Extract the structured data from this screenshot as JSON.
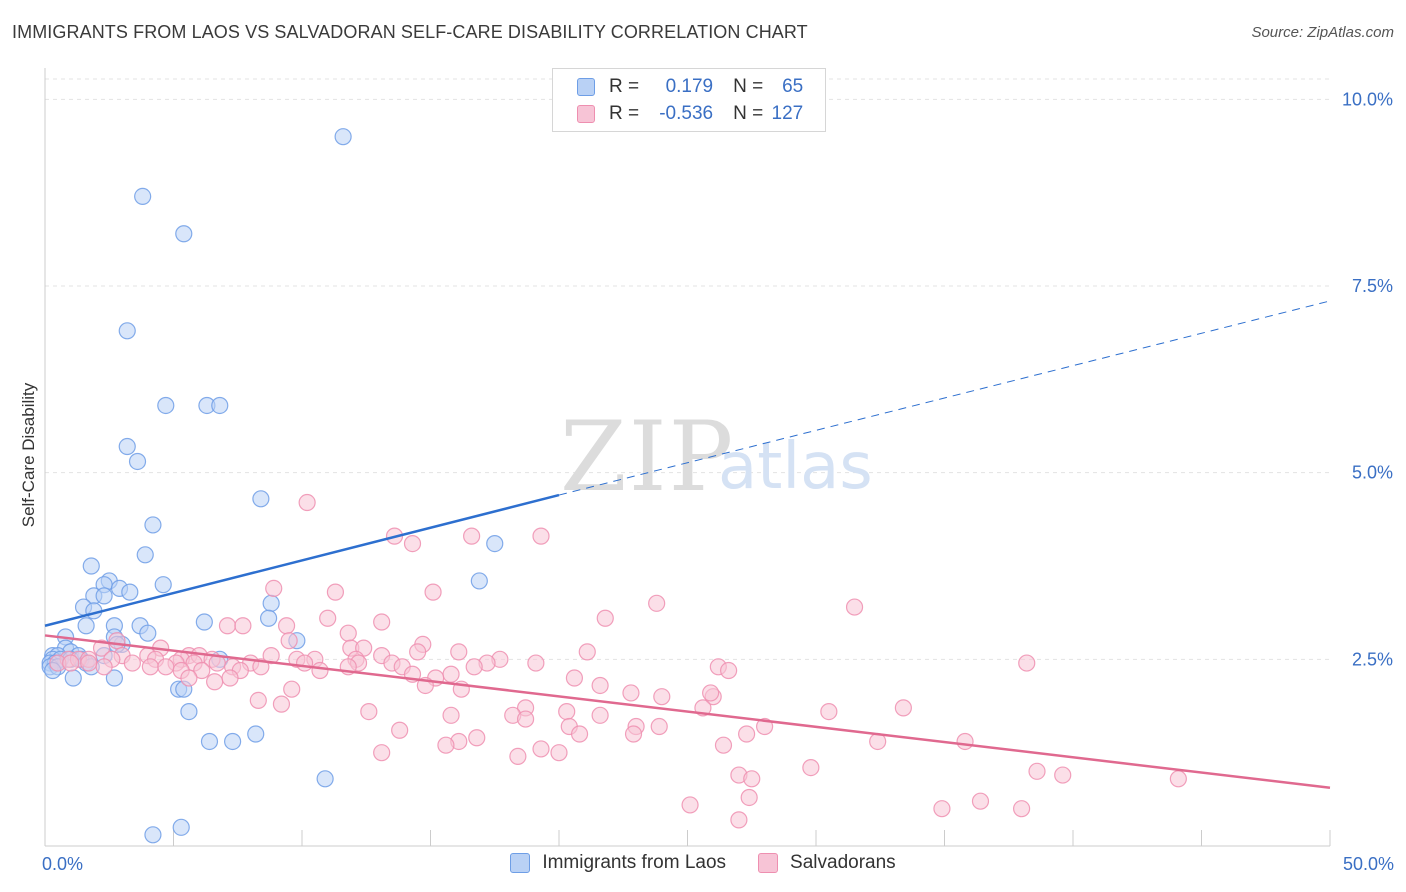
{
  "header": {
    "title": "IMMIGRANTS FROM LAOS VS SALVADORAN SELF-CARE DISABILITY CORRELATION CHART",
    "source": "Source: ZipAtlas.com"
  },
  "legend": {
    "rows": [
      {
        "r_label": "R =",
        "r_value": "0.179",
        "n_label": "N =",
        "n_value": "65"
      },
      {
        "r_label": "R =",
        "r_value": "-0.536",
        "n_label": "N =",
        "n_value": "127"
      }
    ]
  },
  "watermark": {
    "zip": "ZIP",
    "atlas": "atlas"
  },
  "chart_data": {
    "type": "scatter",
    "ylabel": "Self-Care Disability",
    "xlim": [
      0,
      50
    ],
    "ylim": [
      0,
      10.5
    ],
    "x_tick_labels": [
      {
        "v": 0,
        "label": "0.0%"
      },
      {
        "v": 50,
        "label": "50.0%"
      }
    ],
    "x_minor_ticks": [
      0,
      5,
      10,
      15,
      20,
      25,
      30,
      35,
      40,
      45,
      50
    ],
    "y_ticks": [
      {
        "v": 2.5,
        "label": "2.5%"
      },
      {
        "v": 5.0,
        "label": "5.0%"
      },
      {
        "v": 7.5,
        "label": "7.5%"
      },
      {
        "v": 10.0,
        "label": "10.0%"
      }
    ],
    "grid": true,
    "colors": {
      "laos": "#6e9ee6",
      "laos_fill": "#b9d1f5",
      "laos_line": "#2d6fcf",
      "salv": "#ee8fb0",
      "salv_fill": "#f7c4d6",
      "salv_line": "#e0698f"
    },
    "series": [
      {
        "name": "Immigrants from Laos",
        "color": "#6e9ee6",
        "points": [
          [
            11.6,
            9.5
          ],
          [
            3.8,
            8.7
          ],
          [
            5.4,
            8.2
          ],
          [
            3.2,
            6.9
          ],
          [
            4.7,
            5.9
          ],
          [
            6.3,
            5.9
          ],
          [
            6.8,
            5.9
          ],
          [
            3.2,
            5.35
          ],
          [
            3.6,
            5.15
          ],
          [
            8.4,
            4.65
          ],
          [
            4.2,
            4.3
          ],
          [
            17.5,
            4.05
          ],
          [
            3.9,
            3.9
          ],
          [
            1.8,
            3.75
          ],
          [
            2.5,
            3.55
          ],
          [
            2.3,
            3.5
          ],
          [
            4.6,
            3.5
          ],
          [
            2.9,
            3.45
          ],
          [
            3.3,
            3.4
          ],
          [
            1.9,
            3.35
          ],
          [
            2.3,
            3.35
          ],
          [
            1.5,
            3.2
          ],
          [
            1.9,
            3.15
          ],
          [
            8.8,
            3.25
          ],
          [
            8.7,
            3.05
          ],
          [
            6.2,
            3.0
          ],
          [
            1.6,
            2.95
          ],
          [
            2.7,
            2.95
          ],
          [
            3.7,
            2.95
          ],
          [
            4.0,
            2.85
          ],
          [
            0.8,
            2.8
          ],
          [
            2.7,
            2.8
          ],
          [
            9.8,
            2.75
          ],
          [
            3.0,
            2.7
          ],
          [
            0.8,
            2.65
          ],
          [
            1.0,
            2.6
          ],
          [
            0.3,
            2.55
          ],
          [
            0.5,
            2.55
          ],
          [
            1.3,
            2.55
          ],
          [
            2.3,
            2.55
          ],
          [
            0.3,
            2.5
          ],
          [
            0.6,
            2.5
          ],
          [
            1.0,
            2.5
          ],
          [
            1.4,
            2.5
          ],
          [
            0.2,
            2.45
          ],
          [
            0.4,
            2.45
          ],
          [
            1.6,
            2.45
          ],
          [
            0.2,
            2.4
          ],
          [
            0.5,
            2.4
          ],
          [
            1.8,
            2.4
          ],
          [
            0.3,
            2.35
          ],
          [
            1.1,
            2.25
          ],
          [
            2.7,
            2.25
          ],
          [
            5.2,
            2.1
          ],
          [
            5.4,
            2.1
          ],
          [
            16.9,
            3.55
          ],
          [
            6.8,
            2.5
          ],
          [
            5.6,
            1.8
          ],
          [
            8.2,
            1.5
          ],
          [
            6.4,
            1.4
          ],
          [
            7.3,
            1.4
          ],
          [
            10.9,
            0.9
          ],
          [
            4.2,
            0.15
          ],
          [
            5.3,
            0.25
          ],
          [
            2.8,
            2.7
          ]
        ]
      },
      {
        "name": "Salvadorans",
        "color": "#ee8fb0",
        "points": [
          [
            10.2,
            4.6
          ],
          [
            13.6,
            4.15
          ],
          [
            16.6,
            4.15
          ],
          [
            19.3,
            4.15
          ],
          [
            14.3,
            4.05
          ],
          [
            8.9,
            3.45
          ],
          [
            11.3,
            3.4
          ],
          [
            15.1,
            3.4
          ],
          [
            23.8,
            3.25
          ],
          [
            31.5,
            3.2
          ],
          [
            11.0,
            3.05
          ],
          [
            13.1,
            3.0
          ],
          [
            21.8,
            3.05
          ],
          [
            7.1,
            2.95
          ],
          [
            7.7,
            2.95
          ],
          [
            9.4,
            2.95
          ],
          [
            11.8,
            2.85
          ],
          [
            2.8,
            2.75
          ],
          [
            9.5,
            2.75
          ],
          [
            14.7,
            2.7
          ],
          [
            2.2,
            2.65
          ],
          [
            4.5,
            2.65
          ],
          [
            11.9,
            2.65
          ],
          [
            12.4,
            2.65
          ],
          [
            14.5,
            2.6
          ],
          [
            16.1,
            2.6
          ],
          [
            21.1,
            2.6
          ],
          [
            3.0,
            2.55
          ],
          [
            4.0,
            2.55
          ],
          [
            5.6,
            2.55
          ],
          [
            6.0,
            2.55
          ],
          [
            8.8,
            2.55
          ],
          [
            13.1,
            2.55
          ],
          [
            0.9,
            2.5
          ],
          [
            1.3,
            2.5
          ],
          [
            1.7,
            2.5
          ],
          [
            2.6,
            2.5
          ],
          [
            4.3,
            2.5
          ],
          [
            5.3,
            2.5
          ],
          [
            6.5,
            2.5
          ],
          [
            9.8,
            2.5
          ],
          [
            10.5,
            2.5
          ],
          [
            12.1,
            2.5
          ],
          [
            17.7,
            2.5
          ],
          [
            0.5,
            2.45
          ],
          [
            1.0,
            2.45
          ],
          [
            1.7,
            2.45
          ],
          [
            3.4,
            2.45
          ],
          [
            5.1,
            2.45
          ],
          [
            5.8,
            2.45
          ],
          [
            6.7,
            2.45
          ],
          [
            8.0,
            2.45
          ],
          [
            10.1,
            2.45
          ],
          [
            12.2,
            2.45
          ],
          [
            13.5,
            2.45
          ],
          [
            17.2,
            2.45
          ],
          [
            19.1,
            2.45
          ],
          [
            38.2,
            2.45
          ],
          [
            2.3,
            2.4
          ],
          [
            4.1,
            2.4
          ],
          [
            4.7,
            2.4
          ],
          [
            7.3,
            2.4
          ],
          [
            8.4,
            2.4
          ],
          [
            11.8,
            2.4
          ],
          [
            13.9,
            2.4
          ],
          [
            16.7,
            2.4
          ],
          [
            26.2,
            2.4
          ],
          [
            5.3,
            2.35
          ],
          [
            6.1,
            2.35
          ],
          [
            7.6,
            2.35
          ],
          [
            10.7,
            2.35
          ],
          [
            14.3,
            2.3
          ],
          [
            15.8,
            2.3
          ],
          [
            5.6,
            2.25
          ],
          [
            7.2,
            2.25
          ],
          [
            15.2,
            2.25
          ],
          [
            20.6,
            2.25
          ],
          [
            6.6,
            2.2
          ],
          [
            14.8,
            2.15
          ],
          [
            21.6,
            2.15
          ],
          [
            9.6,
            2.1
          ],
          [
            16.2,
            2.1
          ],
          [
            22.8,
            2.05
          ],
          [
            24.0,
            2.0
          ],
          [
            8.3,
            1.95
          ],
          [
            9.2,
            1.9
          ],
          [
            26.0,
            2.0
          ],
          [
            18.7,
            1.85
          ],
          [
            25.6,
            1.85
          ],
          [
            12.6,
            1.8
          ],
          [
            20.3,
            1.8
          ],
          [
            21.6,
            1.75
          ],
          [
            15.8,
            1.75
          ],
          [
            18.2,
            1.75
          ],
          [
            18.7,
            1.7
          ],
          [
            30.5,
            1.8
          ],
          [
            33.4,
            1.85
          ],
          [
            20.4,
            1.6
          ],
          [
            23.0,
            1.6
          ],
          [
            23.9,
            1.6
          ],
          [
            13.8,
            1.55
          ],
          [
            20.8,
            1.5
          ],
          [
            22.9,
            1.5
          ],
          [
            27.3,
            1.5
          ],
          [
            28.0,
            1.6
          ],
          [
            16.8,
            1.45
          ],
          [
            16.1,
            1.4
          ],
          [
            32.4,
            1.4
          ],
          [
            35.8,
            1.4
          ],
          [
            26.4,
            1.35
          ],
          [
            15.6,
            1.35
          ],
          [
            19.3,
            1.3
          ],
          [
            13.1,
            1.25
          ],
          [
            20.0,
            1.25
          ],
          [
            18.4,
            1.2
          ],
          [
            26.6,
            2.35
          ],
          [
            29.8,
            1.05
          ],
          [
            38.6,
            1.0
          ],
          [
            27.0,
            0.95
          ],
          [
            39.6,
            0.95
          ],
          [
            44.1,
            0.9
          ],
          [
            27.5,
            0.9
          ],
          [
            27.4,
            0.65
          ],
          [
            25.1,
            0.55
          ],
          [
            34.9,
            0.5
          ],
          [
            38.0,
            0.5
          ],
          [
            36.4,
            0.6
          ],
          [
            27.0,
            0.35
          ],
          [
            25.9,
            2.05
          ]
        ]
      }
    ],
    "trend_lines": [
      {
        "name": "Immigrants from Laos",
        "solid": [
          [
            0,
            2.95
          ],
          [
            20,
            4.7
          ]
        ],
        "dashed": [
          [
            20,
            4.7
          ],
          [
            50,
            7.3
          ]
        ]
      },
      {
        "name": "Salvadorans",
        "solid": [
          [
            0,
            2.82
          ],
          [
            50,
            0.78
          ]
        ]
      }
    ]
  }
}
